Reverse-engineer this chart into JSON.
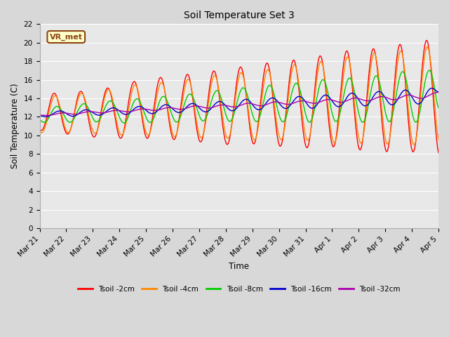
{
  "title": "Soil Temperature Set 3",
  "xlabel": "Time",
  "ylabel": "Soil Temperature (C)",
  "ylim": [
    0,
    22
  ],
  "yticks": [
    0,
    2,
    4,
    6,
    8,
    10,
    12,
    14,
    16,
    18,
    20,
    22
  ],
  "bg_color": "#d8d8d8",
  "plot_bg_color": "#e8e8e8",
  "grid_color": "#ffffff",
  "colors": {
    "Tsoil -2cm": "#ff0000",
    "Tsoil -4cm": "#ff8800",
    "Tsoil -8cm": "#00cc00",
    "Tsoil -16cm": "#0000cc",
    "Tsoil -32cm": "#aa00aa"
  },
  "legend_label": "VR_met",
  "legend_bg": "#ffffcc",
  "legend_border": "#8b4513",
  "xtick_labels": [
    "Mar 21",
    "Mar 22",
    "Mar 23",
    "Mar 24",
    "Mar 25",
    "Mar 26",
    "Mar 27",
    "Mar 28",
    "Mar 29",
    "Mar 30",
    "Mar 31",
    "Apr 1",
    "Apr 2",
    "Apr 3",
    "Apr 4",
    "Apr 5"
  ],
  "xtick_positions": [
    0,
    1,
    2,
    3,
    4,
    5,
    6,
    7,
    8,
    9,
    10,
    11,
    12,
    13,
    14,
    15
  ]
}
